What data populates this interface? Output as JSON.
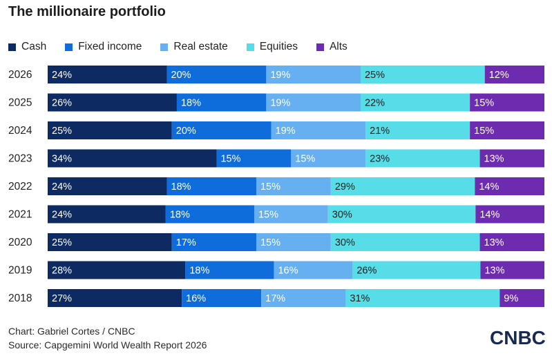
{
  "title": "The millionaire portfolio",
  "legend": [
    {
      "label": "Cash",
      "color": "#0d2a63"
    },
    {
      "label": "Fixed income",
      "color": "#0f6ddb"
    },
    {
      "label": "Real estate",
      "color": "#66aff0"
    },
    {
      "label": "Equities",
      "color": "#57dde7"
    },
    {
      "label": "Alts",
      "color": "#6d2bb0"
    }
  ],
  "chart_data": {
    "type": "bar",
    "orientation": "horizontal",
    "stacked": true,
    "categories": [
      "2026",
      "2025",
      "2024",
      "2023",
      "2022",
      "2021",
      "2020",
      "2019",
      "2018"
    ],
    "series": [
      {
        "name": "Cash",
        "color": "#0d2a63",
        "label_color": "#ffffff",
        "values": [
          24,
          26,
          25,
          34,
          24,
          24,
          25,
          28,
          27
        ]
      },
      {
        "name": "Fixed income",
        "color": "#0f6ddb",
        "label_color": "#ffffff",
        "values": [
          20,
          18,
          20,
          15,
          18,
          18,
          17,
          18,
          16
        ]
      },
      {
        "name": "Real estate",
        "color": "#66aff0",
        "label_color": "#ffffff",
        "values": [
          19,
          19,
          19,
          15,
          15,
          15,
          15,
          16,
          17
        ]
      },
      {
        "name": "Equities",
        "color": "#57dde7",
        "label_color": "#1c1c1c",
        "values": [
          25,
          22,
          21,
          23,
          29,
          30,
          30,
          26,
          31
        ]
      },
      {
        "name": "Alts",
        "color": "#6d2bb0",
        "label_color": "#ffffff",
        "values": [
          12,
          15,
          15,
          13,
          14,
          14,
          13,
          13,
          9
        ]
      }
    ],
    "value_suffix": "%",
    "xlim": [
      0,
      100
    ],
    "legend_position": "top-left",
    "grid": false
  },
  "footer": {
    "credit": "Chart: Gabriel Cortes / CNBC",
    "source": "Source: Capgemini World Wealth Report 2026"
  },
  "logo": {
    "text": "CNBC"
  }
}
